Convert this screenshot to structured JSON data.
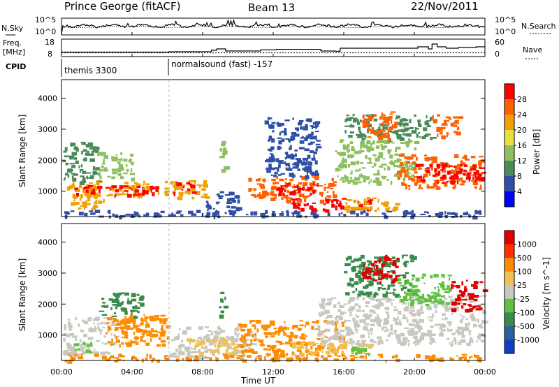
{
  "header": {
    "station": "Prince George (fitACF)",
    "beam": "Beam 13",
    "date": "22/Nov/2011"
  },
  "sky_panel": {
    "left_label": "N.Sky",
    "left_ticks": [
      "10^5",
      "10^0"
    ],
    "right_label": "N.Search",
    "right_ticks": [
      "10^5",
      "10^0"
    ]
  },
  "freq_panel": {
    "left_label_1": "Freq.",
    "left_label_2": "[MHz]",
    "left_ticks": [
      "18",
      "8"
    ],
    "right_label": "Nave",
    "right_ticks": [
      "60",
      "0"
    ]
  },
  "cpid_panel": {
    "label": "CPID",
    "mode_1": "themis 3300",
    "mode_2": "normalsound (fast) -157"
  },
  "power_panel": {
    "ylabel": "Slant Range [km]",
    "colorbar_label": "Power [dB]",
    "colorbar_ticks": [
      "28",
      "24",
      "20",
      "16",
      "12",
      "8",
      "4"
    ],
    "colors": [
      "#0000ff",
      "#2f4fa8",
      "#4a8a5a",
      "#8fc060",
      "#e8e040",
      "#f0a000",
      "#ff6000",
      "#ff0000"
    ]
  },
  "velocity_panel": {
    "ylabel": "Slant Range [km]",
    "colorbar_label": "Velocity [m s^-1]",
    "colorbar_ticks": [
      "1000",
      "500",
      "100",
      "25",
      "-25",
      "-100",
      "-500",
      "-1000"
    ],
    "colors": [
      "#1040c0",
      "#2f5fa0",
      "#3a8a4a",
      "#60c040",
      "#c8c8c0",
      "#f0c050",
      "#ff8c00",
      "#ff3000",
      "#e00000"
    ]
  },
  "chart_data": {
    "type": "heatmap",
    "xlabel": "Time UT",
    "x_ticks": [
      "00:00",
      "04:00",
      "08:00",
      "12:00",
      "16:00",
      "20:00",
      "00:00"
    ],
    "y_ticks": [
      "1000",
      "2000",
      "3000",
      "4000"
    ],
    "x_range_hours": [
      0,
      24
    ],
    "ylim": [
      180,
      4600
    ],
    "mode_change_hour": 6.1,
    "freq_mhz": [
      [
        0.0,
        11.2
      ],
      [
        6.0,
        11.2
      ],
      [
        6.1,
        11.5
      ],
      [
        8.2,
        11.5
      ],
      [
        8.5,
        12.5
      ],
      [
        8.8,
        13.5
      ],
      [
        9.3,
        12.0
      ],
      [
        11.0,
        12.0
      ],
      [
        11.3,
        12.8
      ],
      [
        12.0,
        12.8
      ],
      [
        12.2,
        13.2
      ],
      [
        14.5,
        13.2
      ],
      [
        14.7,
        12.0
      ],
      [
        15.5,
        11.8
      ],
      [
        15.8,
        14.0
      ],
      [
        20.0,
        14.0
      ],
      [
        20.2,
        15.0
      ],
      [
        20.8,
        13.5
      ],
      [
        21.0,
        17.0
      ],
      [
        21.3,
        15.0
      ],
      [
        21.8,
        14.0
      ],
      [
        22.5,
        14.5
      ],
      [
        23.5,
        15.0
      ],
      [
        24.0,
        15.5
      ]
    ],
    "nave": [
      [
        0,
        16
      ],
      [
        24,
        16
      ]
    ],
    "series": [
      {
        "name": "Power [dB]",
        "patches": [
          {
            "t0": 0.05,
            "t1": 6.0,
            "r0": 850,
            "r1": 1350,
            "level": 5
          },
          {
            "t0": 0.7,
            "t1": 5.5,
            "r0": 900,
            "r1": 1200,
            "level": 7
          },
          {
            "t0": 0.05,
            "t1": 2.0,
            "r0": 1300,
            "r1": 2600,
            "level": 2
          },
          {
            "t0": 2.0,
            "t1": 4.0,
            "r0": 1400,
            "r1": 2300,
            "level": 3
          },
          {
            "t0": 0.5,
            "t1": 2.5,
            "r0": 450,
            "r1": 900,
            "level": 5
          },
          {
            "t0": 6.0,
            "t1": 8.2,
            "r0": 800,
            "r1": 1400,
            "level": 5
          },
          {
            "t0": 6.3,
            "t1": 7.5,
            "r0": 900,
            "r1": 1300,
            "level": 7
          },
          {
            "t0": 8.0,
            "t1": 10.0,
            "r0": 300,
            "r1": 1000,
            "level": 1
          },
          {
            "t0": 8.9,
            "t1": 9.3,
            "r0": 1600,
            "r1": 2700,
            "level": 3
          },
          {
            "t0": 10.5,
            "t1": 15.5,
            "r0": 700,
            "r1": 1500,
            "level": 6
          },
          {
            "t0": 12.0,
            "t1": 14.5,
            "r0": 900,
            "r1": 1300,
            "level": 7
          },
          {
            "t0": 11.5,
            "t1": 14.5,
            "r0": 1500,
            "r1": 3400,
            "level": 1
          },
          {
            "t0": 13.0,
            "t1": 17.5,
            "r0": 400,
            "r1": 800,
            "level": 7
          },
          {
            "t0": 15.5,
            "t1": 19.0,
            "r0": 400,
            "r1": 800,
            "level": 5
          },
          {
            "t0": 15.5,
            "t1": 20.0,
            "r0": 1300,
            "r1": 2700,
            "level": 3
          },
          {
            "t0": 16.0,
            "t1": 21.0,
            "r0": 2700,
            "r1": 3500,
            "level": 2
          },
          {
            "t0": 19.0,
            "t1": 23.9,
            "r0": 1100,
            "r1": 2200,
            "level": 6
          },
          {
            "t0": 20.0,
            "t1": 23.9,
            "r0": 1300,
            "r1": 1900,
            "level": 7
          },
          {
            "t0": 17.0,
            "t1": 19.0,
            "r0": 2700,
            "r1": 3600,
            "level": 6
          },
          {
            "t0": 21.0,
            "t1": 22.5,
            "r0": 2800,
            "r1": 3500,
            "level": 6
          },
          {
            "t0": 0.05,
            "t1": 23.9,
            "r0": 200,
            "r1": 400,
            "level": 1
          }
        ]
      },
      {
        "name": "Velocity [m s^-1]",
        "patches": [
          {
            "t0": 0.05,
            "t1": 3.0,
            "r0": 400,
            "r1": 1600,
            "level": 4
          },
          {
            "t0": 2.5,
            "t1": 6.0,
            "r0": 700,
            "r1": 1700,
            "level": 6
          },
          {
            "t0": 3.0,
            "t1": 5.5,
            "r0": 1100,
            "r1": 1600,
            "level": 6
          },
          {
            "t0": 0.6,
            "t1": 1.8,
            "r0": 450,
            "r1": 800,
            "level": 3
          },
          {
            "t0": 2.0,
            "t1": 4.5,
            "r0": 1600,
            "r1": 2400,
            "level": 2
          },
          {
            "t0": 6.0,
            "t1": 11.0,
            "r0": 300,
            "r1": 1300,
            "level": 4
          },
          {
            "t0": 7.0,
            "t1": 10.0,
            "r0": 400,
            "r1": 900,
            "level": 5
          },
          {
            "t0": 8.9,
            "t1": 9.3,
            "r0": 1600,
            "r1": 2400,
            "level": 2
          },
          {
            "t0": 10.0,
            "t1": 16.0,
            "r0": 400,
            "r1": 1500,
            "level": 6
          },
          {
            "t0": 13.0,
            "t1": 17.5,
            "r0": 400,
            "r1": 800,
            "level": 5
          },
          {
            "t0": 16.0,
            "t1": 17.5,
            "r0": 400,
            "r1": 650,
            "level": 3
          },
          {
            "t0": 14.5,
            "t1": 23.9,
            "r0": 700,
            "r1": 2300,
            "level": 4
          },
          {
            "t0": 16.0,
            "t1": 20.0,
            "r0": 2300,
            "r1": 3600,
            "level": 2
          },
          {
            "t0": 17.0,
            "t1": 19.0,
            "r0": 2700,
            "r1": 3600,
            "level": 8
          },
          {
            "t0": 19.0,
            "t1": 22.0,
            "r0": 2000,
            "r1": 3000,
            "level": 3
          },
          {
            "t0": 22.0,
            "t1": 23.9,
            "r0": 1800,
            "r1": 2800,
            "level": 8
          },
          {
            "t0": 0.05,
            "t1": 23.9,
            "r0": 200,
            "r1": 400,
            "level": 6
          }
        ]
      }
    ]
  }
}
